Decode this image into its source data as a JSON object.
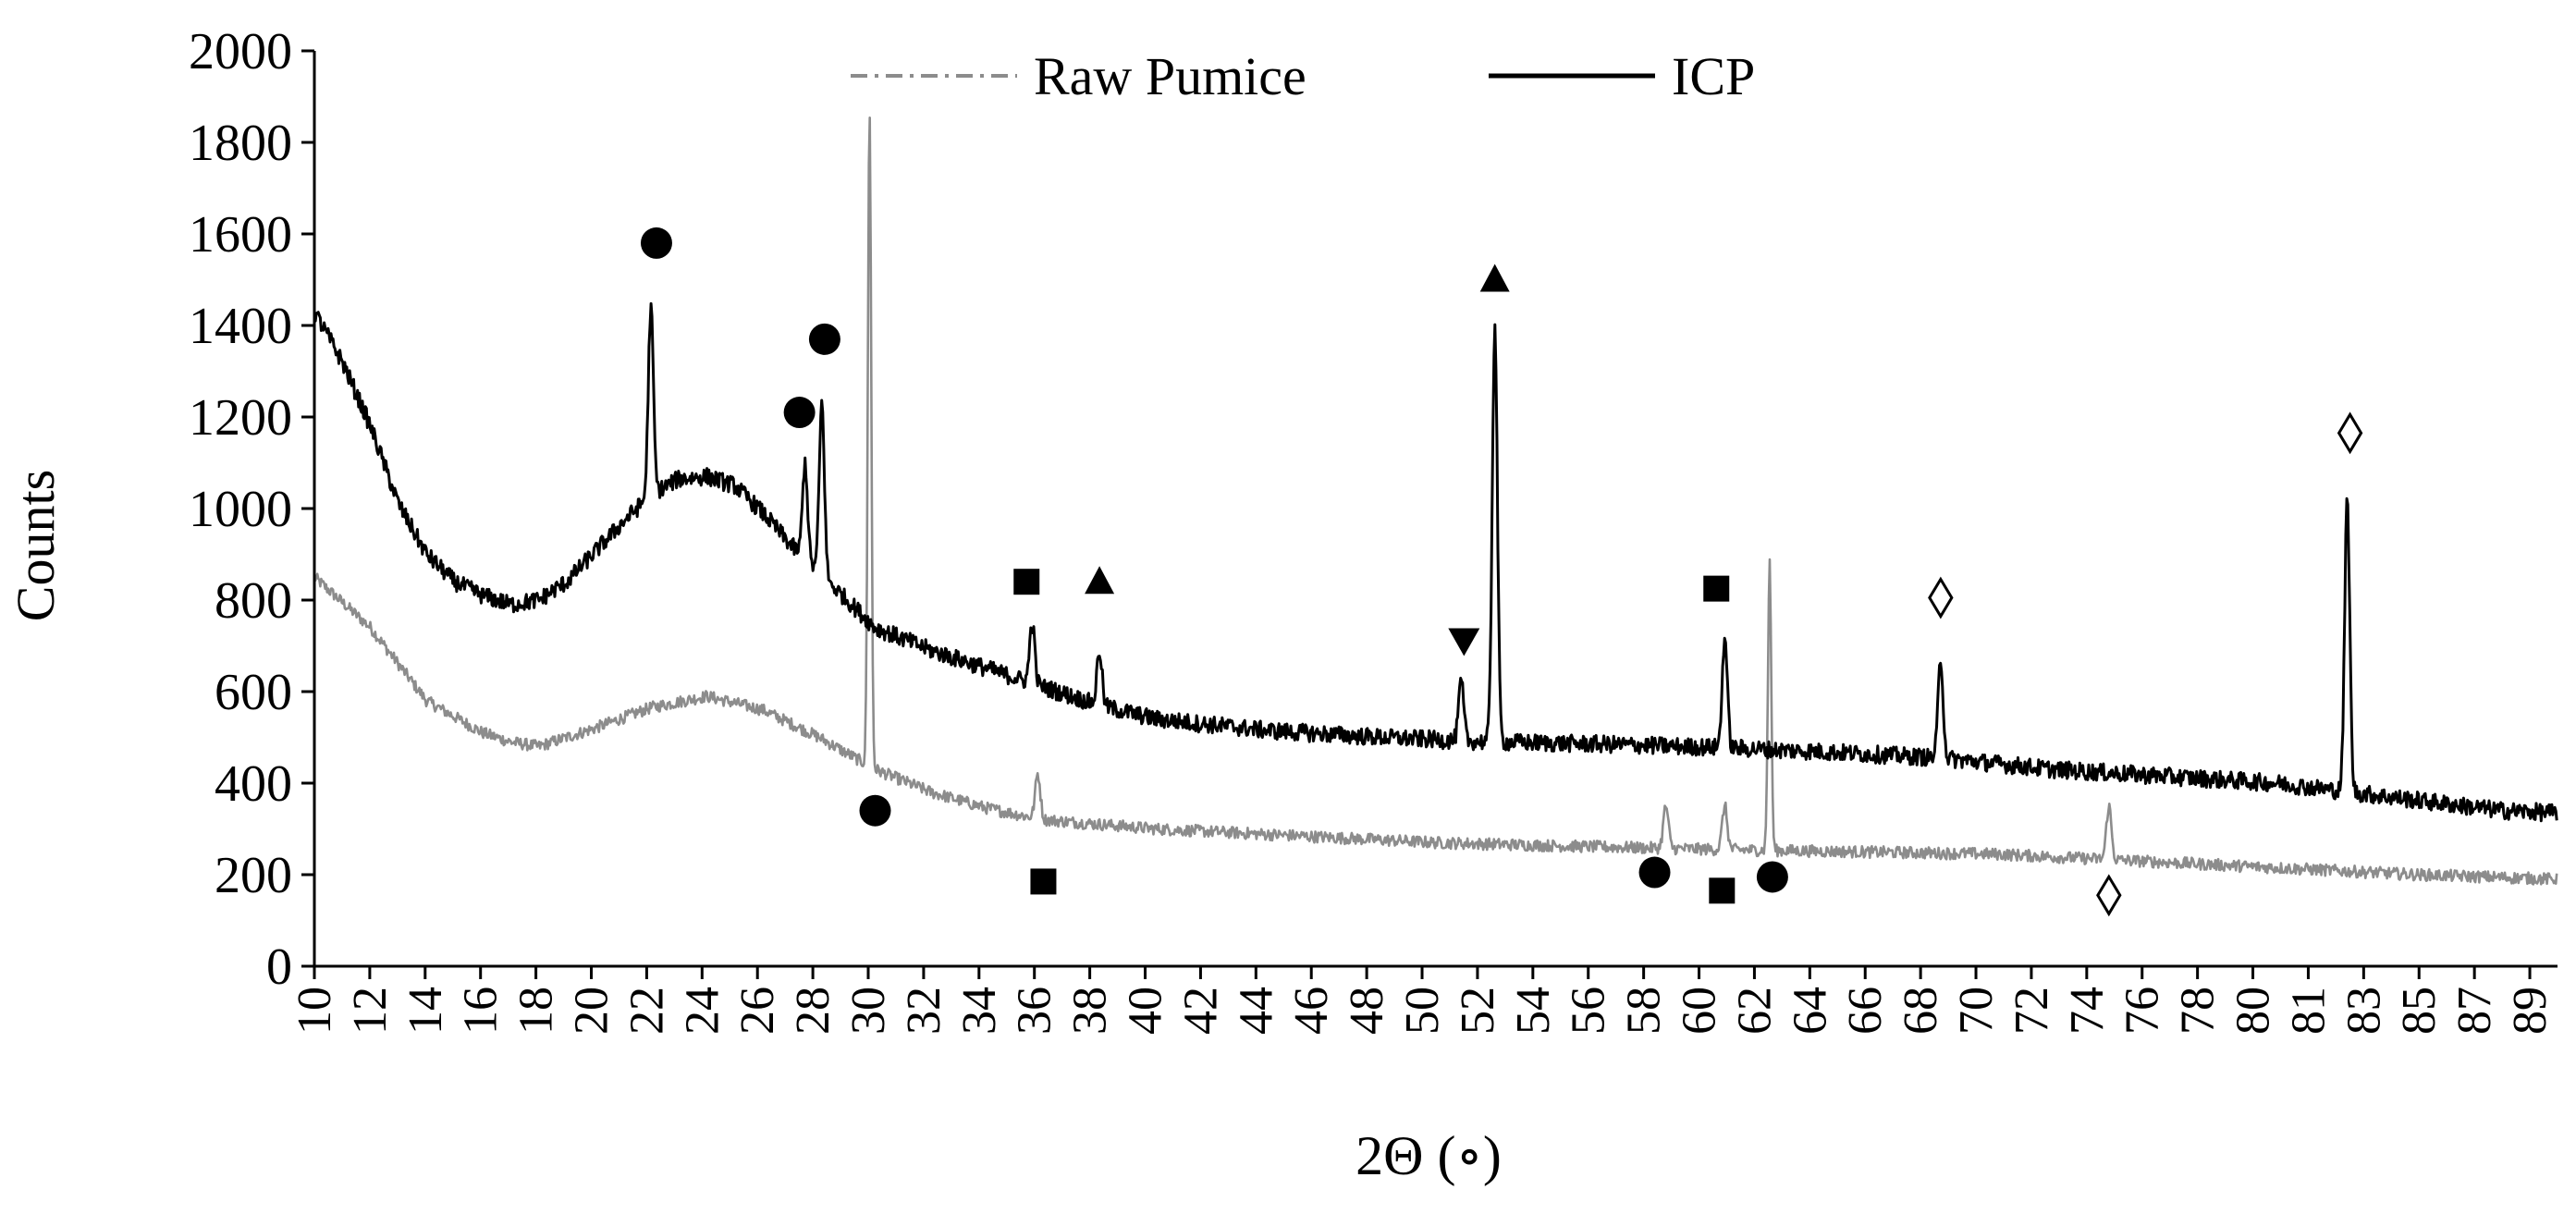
{
  "chart_data": {
    "type": "line",
    "title": "",
    "xlabel": "2Θ (∘)",
    "ylabel": "Counts",
    "xlim": [
      10,
      90
    ],
    "ylim": [
      0,
      2000
    ],
    "grid": false,
    "legend_position": "top",
    "y_ticks": [
      "0",
      "200",
      "400",
      "600",
      "800",
      "1000",
      "1200",
      "1400",
      "1600",
      "1800",
      "2000"
    ],
    "x_ticks": [
      "10",
      "12",
      "14",
      "16",
      "18",
      "20",
      "22",
      "24",
      "26",
      "28",
      "30",
      "32",
      "34",
      "36",
      "38",
      "40",
      "42",
      "44",
      "46",
      "48",
      "50",
      "52",
      "54",
      "56",
      "58",
      "60",
      "62",
      "64",
      "66",
      "68",
      "70",
      "72",
      "74",
      "76",
      "78",
      "80",
      "81",
      "83",
      "85",
      "87",
      "89"
    ],
    "series": [
      {
        "name": "Raw Pumice",
        "style": "dash-dot",
        "color": "#8c8c8c",
        "baseline": [
          [
            10,
            850
          ],
          [
            12,
            740
          ],
          [
            14,
            580
          ],
          [
            16,
            510
          ],
          [
            17,
            490
          ],
          [
            18,
            480
          ],
          [
            20,
            520
          ],
          [
            22,
            565
          ],
          [
            24,
            590
          ],
          [
            26,
            560
          ],
          [
            28,
            500
          ],
          [
            30,
            430
          ],
          [
            32,
            380
          ],
          [
            34,
            345
          ],
          [
            36,
            320
          ],
          [
            40,
            300
          ],
          [
            45,
            285
          ],
          [
            50,
            270
          ],
          [
            55,
            262
          ],
          [
            60,
            255
          ],
          [
            65,
            250
          ],
          [
            70,
            245
          ],
          [
            75,
            230
          ],
          [
            80,
            215
          ],
          [
            85,
            200
          ],
          [
            90,
            190
          ]
        ],
        "peaks": [
          [
            29.8,
            1880
          ],
          [
            35.8,
            420
          ],
          [
            58.2,
            350
          ],
          [
            60.3,
            350
          ],
          [
            61.9,
            880
          ],
          [
            74.0,
            350
          ]
        ]
      },
      {
        "name": "ICP",
        "style": "solid",
        "color": "#000000",
        "baseline": [
          [
            10,
            1430
          ],
          [
            11,
            1320
          ],
          [
            12,
            1180
          ],
          [
            13,
            1010
          ],
          [
            14,
            900
          ],
          [
            15,
            840
          ],
          [
            16,
            810
          ],
          [
            17,
            790
          ],
          [
            18,
            800
          ],
          [
            19,
            840
          ],
          [
            20,
            905
          ],
          [
            21,
            970
          ],
          [
            22,
            1030
          ],
          [
            23,
            1065
          ],
          [
            24,
            1070
          ],
          [
            25,
            1050
          ],
          [
            26,
            990
          ],
          [
            27,
            920
          ],
          [
            28,
            860
          ],
          [
            29,
            800
          ],
          [
            30,
            740
          ],
          [
            32,
            690
          ],
          [
            34,
            650
          ],
          [
            36,
            610
          ],
          [
            38,
            570
          ],
          [
            40,
            540
          ],
          [
            44,
            515
          ],
          [
            48,
            500
          ],
          [
            52,
            490
          ],
          [
            56,
            485
          ],
          [
            60,
            478
          ],
          [
            64,
            468
          ],
          [
            68,
            455
          ],
          [
            72,
            430
          ],
          [
            76,
            415
          ],
          [
            80,
            400
          ],
          [
            84,
            370
          ],
          [
            88,
            340
          ],
          [
            90,
            335
          ]
        ],
        "peaks": [
          [
            22.0,
            1440
          ],
          [
            27.5,
            1100
          ],
          [
            28.1,
            1230
          ],
          [
            35.6,
            750
          ],
          [
            38.0,
            690
          ],
          [
            50.9,
            620
          ],
          [
            52.1,
            1400
          ],
          [
            60.3,
            720
          ],
          [
            68.0,
            670
          ],
          [
            82.5,
            1020
          ]
        ]
      }
    ],
    "markers": [
      {
        "symbol": "circle",
        "x": 22.2,
        "y": 1580
      },
      {
        "symbol": "circle",
        "x": 27.3,
        "y": 1210
      },
      {
        "symbol": "circle",
        "x": 28.2,
        "y": 1370
      },
      {
        "symbol": "square",
        "x": 35.4,
        "y": 840
      },
      {
        "symbol": "triangle-up",
        "x": 38.0,
        "y": 840
      },
      {
        "symbol": "triangle-down",
        "x": 51.0,
        "y": 710
      },
      {
        "symbol": "triangle-up",
        "x": 52.1,
        "y": 1500
      },
      {
        "symbol": "square",
        "x": 60.0,
        "y": 825
      },
      {
        "symbol": "diamond",
        "x": 68.0,
        "y": 805
      },
      {
        "symbol": "diamond",
        "x": 82.6,
        "y": 1165
      },
      {
        "symbol": "circle",
        "x": 30.0,
        "y": 340
      },
      {
        "symbol": "square",
        "x": 36.0,
        "y": 185
      },
      {
        "symbol": "circle",
        "x": 57.8,
        "y": 205
      },
      {
        "symbol": "square",
        "x": 60.2,
        "y": 165
      },
      {
        "symbol": "circle",
        "x": 62.0,
        "y": 195
      },
      {
        "symbol": "diamond",
        "x": 74.0,
        "y": 155
      }
    ]
  }
}
